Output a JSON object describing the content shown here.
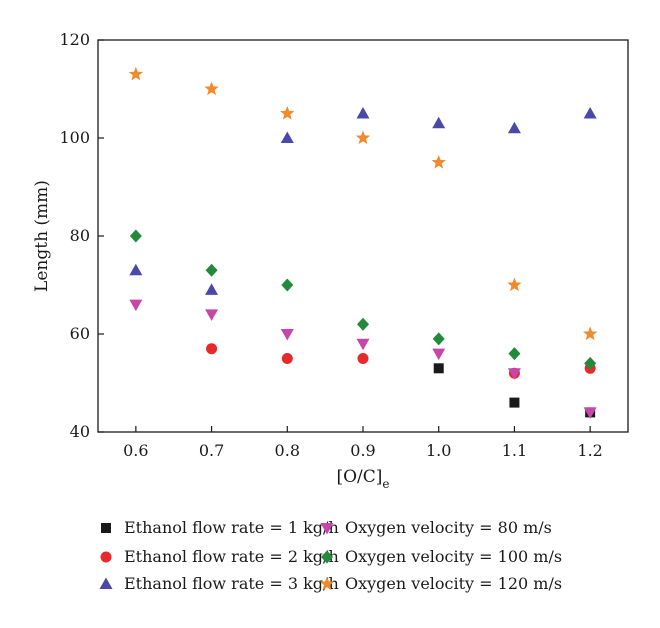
{
  "chart_data": {
    "type": "scatter",
    "title": "",
    "xlabel": "[O/C]",
    "xlabel_subscript": "e",
    "ylabel": "Length (mm)",
    "xlim": [
      0.55,
      1.25
    ],
    "ylim": [
      40,
      120
    ],
    "xticks": [
      0.6,
      0.7,
      0.8,
      0.9,
      1.0,
      1.1,
      1.2
    ],
    "xtick_labels": [
      "0.6",
      "0.7",
      "0.8",
      "0.9",
      "1.0",
      "1.1",
      "1.2"
    ],
    "yticks": [
      40,
      60,
      80,
      100,
      120
    ],
    "ytick_labels": [
      "40",
      "60",
      "80",
      "100",
      "120"
    ],
    "grid": false,
    "legend_position": "bottom",
    "series": [
      {
        "name": "Ethanol flow rate = 1 kg/h",
        "marker": "square",
        "color": "#1a1a1a",
        "points": [
          {
            "x": 1.0,
            "y": 53
          },
          {
            "x": 1.1,
            "y": 46
          },
          {
            "x": 1.2,
            "y": 44
          }
        ]
      },
      {
        "name": "Ethanol flow rate = 2 kg/h",
        "marker": "circle",
        "color": "#e8292b",
        "points": [
          {
            "x": 0.7,
            "y": 57
          },
          {
            "x": 0.8,
            "y": 55
          },
          {
            "x": 0.9,
            "y": 55
          },
          {
            "x": 1.1,
            "y": 52
          },
          {
            "x": 1.2,
            "y": 53
          }
        ]
      },
      {
        "name": "Ethanol flow rate = 3 kg/h",
        "marker": "triangle-up",
        "color": "#4b49a8",
        "points": [
          {
            "x": 0.6,
            "y": 73
          },
          {
            "x": 0.7,
            "y": 69
          },
          {
            "x": 0.8,
            "y": 100
          },
          {
            "x": 0.9,
            "y": 105
          },
          {
            "x": 1.0,
            "y": 103
          },
          {
            "x": 1.1,
            "y": 102
          },
          {
            "x": 1.2,
            "y": 105
          }
        ]
      },
      {
        "name": "Oxygen velocity = 80 m/s",
        "marker": "triangle-down",
        "color": "#c846a8",
        "points": [
          {
            "x": 0.6,
            "y": 66
          },
          {
            "x": 0.7,
            "y": 64
          },
          {
            "x": 0.8,
            "y": 60
          },
          {
            "x": 0.9,
            "y": 58
          },
          {
            "x": 1.0,
            "y": 56
          },
          {
            "x": 1.1,
            "y": 52
          },
          {
            "x": 1.2,
            "y": 44
          }
        ]
      },
      {
        "name": "Oxygen velocity = 100 m/s",
        "marker": "diamond",
        "color": "#238a3c",
        "points": [
          {
            "x": 0.6,
            "y": 80
          },
          {
            "x": 0.7,
            "y": 73
          },
          {
            "x": 0.8,
            "y": 70
          },
          {
            "x": 0.9,
            "y": 62
          },
          {
            "x": 1.0,
            "y": 59
          },
          {
            "x": 1.1,
            "y": 56
          },
          {
            "x": 1.2,
            "y": 54
          }
        ]
      },
      {
        "name": "Oxygen velocity = 120 m/s",
        "marker": "star",
        "color": "#f08a2c",
        "points": [
          {
            "x": 0.6,
            "y": 113
          },
          {
            "x": 0.7,
            "y": 110
          },
          {
            "x": 0.8,
            "y": 105
          },
          {
            "x": 0.9,
            "y": 100
          },
          {
            "x": 1.0,
            "y": 95
          },
          {
            "x": 1.1,
            "y": 70
          },
          {
            "x": 1.2,
            "y": 60
          }
        ]
      }
    ]
  }
}
